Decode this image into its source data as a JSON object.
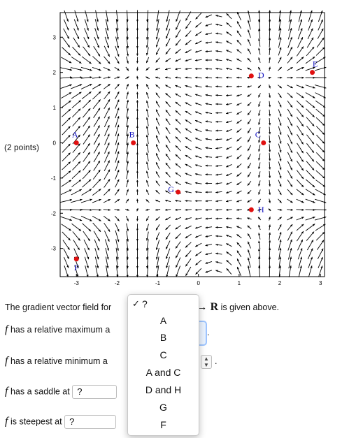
{
  "points_label": "(2 points)",
  "question": {
    "prefix": "The gradient vector field for",
    "suffix_map": "² → ",
    "suffix_R": "R",
    "suffix_end": "is given above."
  },
  "f_symbol": "f",
  "rows": [
    {
      "text": "has a relative maximum a",
      "value": ""
    },
    {
      "text": "has a relative minimum a",
      "value": ""
    },
    {
      "text": "has a saddle at",
      "value": "?"
    },
    {
      "text": "is steepest at",
      "value": "?"
    }
  ],
  "period": ".",
  "dropdown": {
    "check": "✓",
    "options": [
      "?",
      "A",
      "B",
      "C",
      "A and C",
      "D and H",
      "G",
      "F"
    ]
  },
  "chart_data": {
    "type": "vector-field",
    "xlim": [
      -3.4,
      3.1
    ],
    "ylim": [
      -3.8,
      3.7
    ],
    "x_ticks": [
      -3,
      -2,
      -1,
      0,
      1,
      2,
      3
    ],
    "y_ticks": [
      3,
      2,
      1,
      0,
      -1,
      -2,
      -3
    ],
    "points": [
      {
        "label": "A",
        "x": -3.0,
        "y": 0.0
      },
      {
        "label": "B",
        "x": -1.6,
        "y": 0.0
      },
      {
        "label": "C",
        "x": 1.6,
        "y": 0.0
      },
      {
        "label": "D",
        "x": 1.3,
        "y": 1.9
      },
      {
        "label": "E",
        "x": 2.8,
        "y": 2.0
      },
      {
        "label": "F",
        "x": -3.0,
        "y": -3.3
      },
      {
        "label": "G",
        "x": -0.5,
        "y": -1.4
      },
      {
        "label": "H",
        "x": 1.3,
        "y": -1.9
      }
    ],
    "point_color": "#e01010",
    "label_color": "#1010c0"
  }
}
